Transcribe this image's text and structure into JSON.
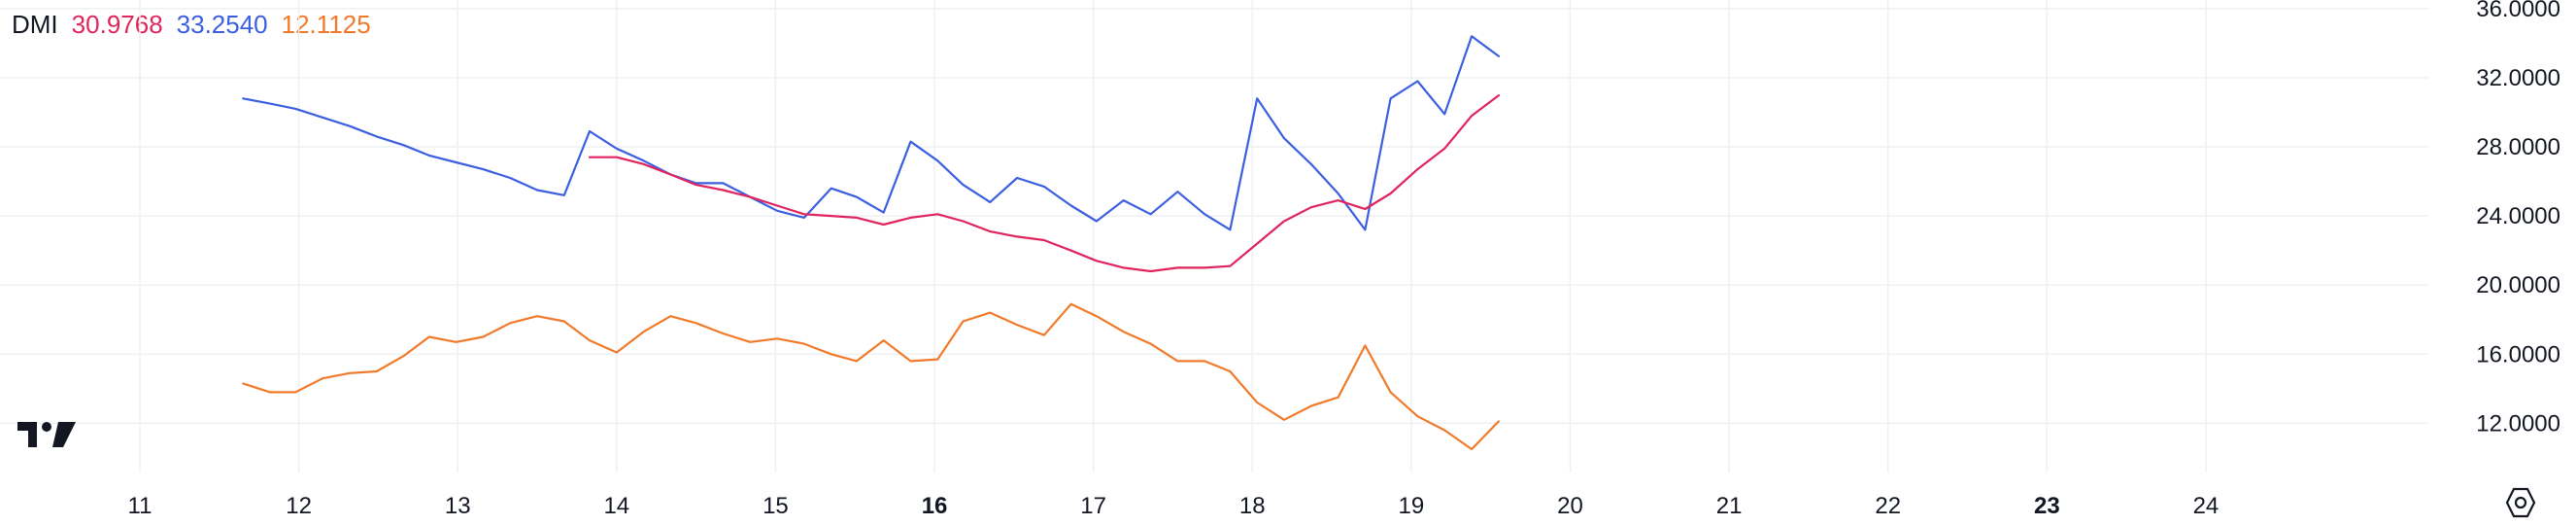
{
  "legend": {
    "title": "DMI",
    "adx": "30.9768",
    "plus_di": "33.2540",
    "minus_di": "12.1125"
  },
  "colors": {
    "adx": "#e0245e",
    "plus_di": "#3b5fe0",
    "minus_di": "#f07a2a",
    "grid": "#eef0f3",
    "text": "#131722"
  },
  "icons": {
    "logo": "tradingview-logo-icon",
    "settings": "settings-hexagon-icon"
  },
  "chart_data": {
    "type": "line",
    "x_ticks": [
      {
        "label": "11",
        "x": 11,
        "bold": false
      },
      {
        "label": "12",
        "x": 12,
        "bold": false
      },
      {
        "label": "13",
        "x": 13,
        "bold": false
      },
      {
        "label": "14",
        "x": 14,
        "bold": false
      },
      {
        "label": "15",
        "x": 15,
        "bold": false
      },
      {
        "label": "16",
        "x": 16,
        "bold": true
      },
      {
        "label": "17",
        "x": 17,
        "bold": false
      },
      {
        "label": "18",
        "x": 18,
        "bold": false
      },
      {
        "label": "19",
        "x": 19,
        "bold": false
      },
      {
        "label": "20",
        "x": 20,
        "bold": false
      },
      {
        "label": "21",
        "x": 21,
        "bold": false
      },
      {
        "label": "22",
        "x": 22,
        "bold": false
      },
      {
        "label": "23",
        "x": 23,
        "bold": true
      },
      {
        "label": "24",
        "x": 24,
        "bold": false
      }
    ],
    "y_ticks": [
      "12.0000",
      "16.0000",
      "20.0000",
      "24.0000",
      "28.0000",
      "32.0000",
      "36.0000"
    ],
    "y_tick_values": [
      12,
      16,
      20,
      24,
      28,
      32,
      36
    ],
    "xlim": [
      10.12,
      25.4
    ],
    "ylim": [
      9.15,
      36.5
    ],
    "grid": true,
    "series": [
      {
        "key": "plus_di",
        "x": [
          11.65,
          11.82,
          11.98,
          12.15,
          12.32,
          12.49,
          12.66,
          12.82,
          12.99,
          13.16,
          13.33,
          13.5,
          13.67,
          13.83,
          14,
          14.17,
          14.34,
          14.5,
          14.67,
          14.84,
          15.01,
          15.18,
          15.35,
          15.51,
          15.68,
          15.85,
          16.02,
          16.18,
          16.35,
          16.52,
          16.69,
          16.86,
          17.02,
          17.19,
          17.36,
          17.53,
          17.7,
          17.86,
          18.03,
          18.2,
          18.37,
          18.54,
          18.71,
          18.87,
          19.04,
          19.21,
          19.38,
          19.55
        ],
        "y": [
          30.8,
          30.5,
          30.2,
          29.7,
          29.2,
          28.6,
          28.1,
          27.5,
          27.1,
          26.7,
          26.2,
          25.5,
          25.2,
          28.9,
          27.9,
          27.2,
          26.4,
          25.9,
          25.9,
          25.1,
          24.3,
          23.9,
          25.6,
          25.1,
          24.2,
          28.3,
          27.2,
          25.8,
          24.8,
          26.2,
          25.7,
          24.6,
          23.7,
          24.9,
          24.1,
          25.4,
          24.1,
          23.2,
          30.8,
          28.5,
          27.0,
          25.3,
          23.2,
          30.8,
          31.8,
          29.9,
          34.4,
          33.25
        ]
      },
      {
        "key": "adx",
        "x": [
          13.83,
          14,
          14.17,
          14.34,
          14.5,
          14.67,
          14.84,
          15.01,
          15.18,
          15.35,
          15.51,
          15.68,
          15.85,
          16.02,
          16.18,
          16.35,
          16.52,
          16.69,
          16.86,
          17.02,
          17.19,
          17.36,
          17.53,
          17.7,
          17.86,
          18.03,
          18.2,
          18.37,
          18.54,
          18.71,
          18.87,
          19.04,
          19.21,
          19.38,
          19.55
        ],
        "y": [
          27.4,
          27.4,
          27.0,
          26.4,
          25.8,
          25.5,
          25.1,
          24.6,
          24.1,
          24.0,
          23.9,
          23.5,
          23.9,
          24.1,
          23.7,
          23.1,
          22.8,
          22.6,
          22.0,
          21.4,
          21.0,
          20.8,
          21.0,
          21.0,
          21.1,
          22.4,
          23.7,
          24.5,
          24.9,
          24.4,
          25.3,
          26.7,
          27.9,
          29.8,
          30.98
        ]
      },
      {
        "key": "minus_di",
        "x": [
          11.65,
          11.82,
          11.98,
          12.15,
          12.32,
          12.49,
          12.66,
          12.82,
          12.99,
          13.16,
          13.33,
          13.5,
          13.67,
          13.83,
          14,
          14.17,
          14.34,
          14.5,
          14.67,
          14.84,
          15.01,
          15.18,
          15.35,
          15.51,
          15.68,
          15.85,
          16.02,
          16.18,
          16.35,
          16.52,
          16.69,
          16.86,
          17.02,
          17.19,
          17.36,
          17.53,
          17.7,
          17.86,
          18.03,
          18.2,
          18.37,
          18.54,
          18.71,
          18.87,
          19.04,
          19.21,
          19.38,
          19.55
        ],
        "y": [
          14.3,
          13.8,
          13.8,
          14.6,
          14.9,
          15.0,
          15.9,
          17.0,
          16.7,
          17.0,
          17.8,
          18.2,
          17.9,
          16.8,
          16.1,
          17.3,
          18.2,
          17.8,
          17.2,
          16.7,
          16.9,
          16.6,
          16.0,
          15.6,
          16.8,
          15.6,
          15.7,
          17.9,
          18.4,
          17.7,
          17.1,
          18.9,
          18.2,
          17.3,
          16.6,
          15.6,
          15.6,
          15.0,
          13.2,
          12.2,
          13.0,
          13.5,
          16.5,
          13.8,
          12.4,
          11.6,
          10.5,
          12.11
        ]
      }
    ]
  }
}
